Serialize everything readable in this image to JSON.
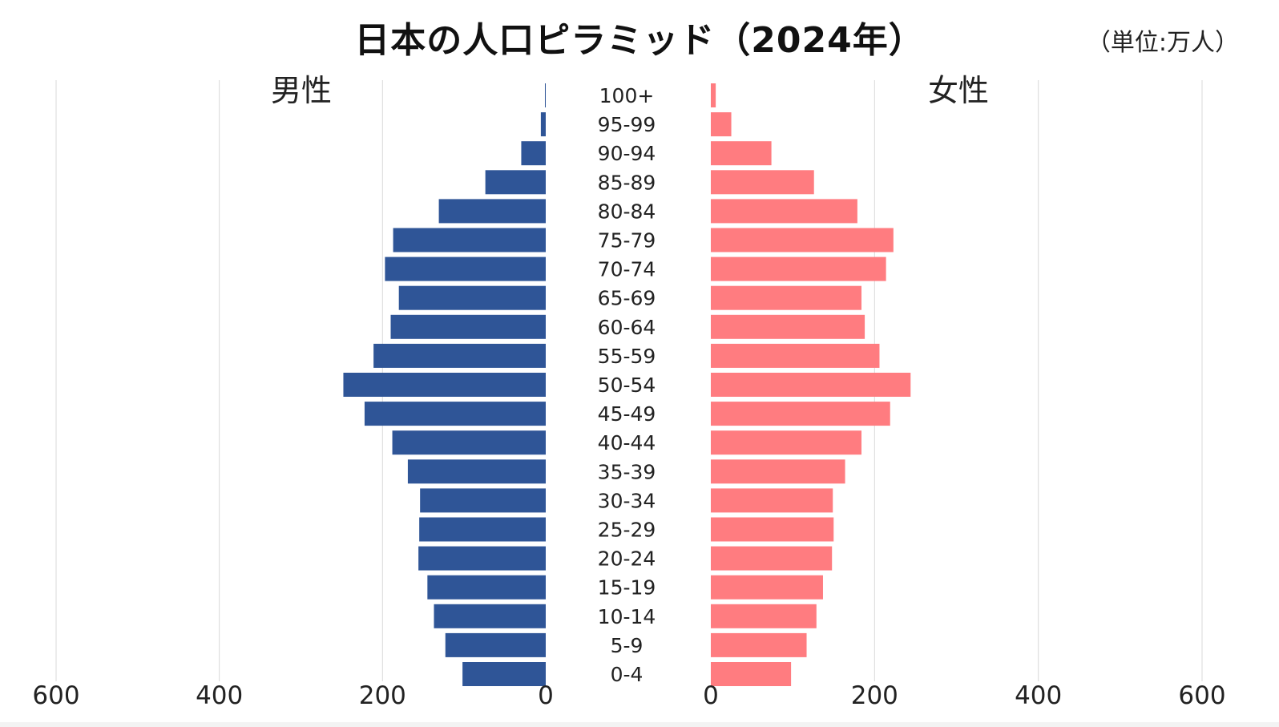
{
  "title": "日本の人口ピラミッド（2024年）",
  "unit_label": "（単位:万人）",
  "chart_data": {
    "type": "bar",
    "orientation": "horizontal-pyramid",
    "title": "日本の人口ピラミッド（2024年）",
    "categories": [
      "100+",
      "95-99",
      "90-94",
      "85-89",
      "80-84",
      "75-79",
      "70-74",
      "65-69",
      "60-64",
      "55-59",
      "50-54",
      "45-49",
      "40-44",
      "35-39",
      "30-34",
      "25-29",
      "20-24",
      "15-19",
      "10-14",
      "5-9",
      "0-4"
    ],
    "series": [
      {
        "name": "男性",
        "color": "#2f5597",
        "values": [
          1,
          6,
          30,
          74,
          131,
          187,
          197,
          180,
          190,
          211,
          248,
          222,
          188,
          169,
          154,
          155,
          156,
          145,
          137,
          123,
          102
        ]
      },
      {
        "name": "女性",
        "color": "#ff7c80",
        "values": [
          6,
          25,
          74,
          126,
          179,
          223,
          214,
          184,
          188,
          206,
          244,
          219,
          184,
          164,
          149,
          150,
          148,
          137,
          129,
          117,
          98
        ]
      }
    ],
    "xlim": [
      0,
      600
    ],
    "x_ticks": [
      "600",
      "400",
      "200",
      "0",
      "0",
      "200",
      "400",
      "600"
    ],
    "grid": true,
    "legend": "none"
  }
}
